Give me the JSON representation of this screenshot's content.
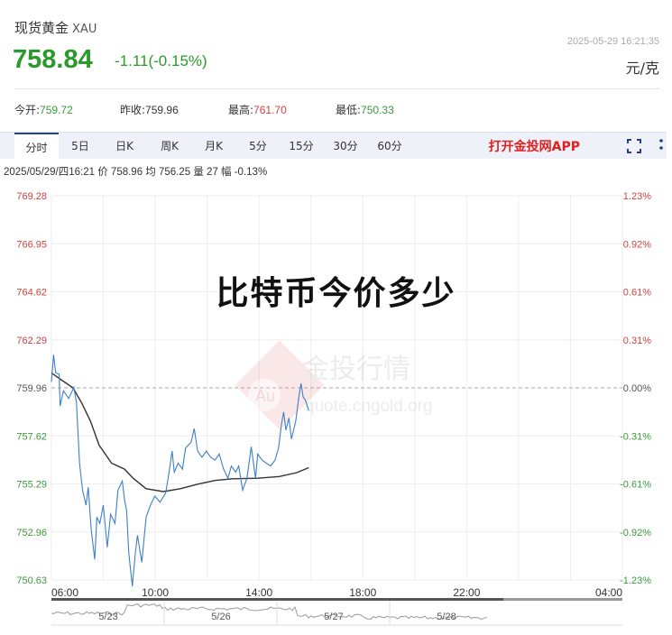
{
  "header": {
    "name": "现货黄金",
    "code": "XAU",
    "price": "758.84",
    "change": "-1.11(-0.15%)",
    "timestamp": "2025-05-29 16:21:35",
    "unit": "元/克"
  },
  "stats": [
    {
      "label": "今开:",
      "value": "759.72",
      "color": "#3a9a3a"
    },
    {
      "label": "昨收:",
      "value": "759.96",
      "color": "#333333"
    },
    {
      "label": "最高:",
      "value": "761.70",
      "color": "#d04040"
    },
    {
      "label": "最低:",
      "value": "750.33",
      "color": "#3a9a3a"
    }
  ],
  "tabs": [
    "分时",
    "5日",
    "日K",
    "周K",
    "月K",
    "5分",
    "15分",
    "30分",
    "60分"
  ],
  "active_tab": "分时",
  "app_link": "打开金投网APP",
  "icons": {
    "fullscreen": "fullscreen-icon",
    "more": "more-vertical-icon"
  },
  "info_line": "2025/05/29/四16:21  价 758.96  均 756.25  量 27  幅 -0.13%",
  "overlay_text": "比特币今价多少",
  "watermark": {
    "brand": "金投行情",
    "url": "quote.cngold.org",
    "logo": "Au"
  },
  "colors": {
    "up": "#d04040",
    "down": "#3a9a3a",
    "price_line": "#3d7fc8",
    "avg_line": "#333333"
  },
  "chart_data": {
    "type": "line",
    "y_ticks": [
      "769.28",
      "766.95",
      "764.62",
      "762.29",
      "759.96",
      "757.62",
      "755.29",
      "752.96",
      "750.63"
    ],
    "pct_ticks": [
      "1.23%",
      "0.92%",
      "0.61%",
      "0.31%",
      "0.00%",
      "-0.31%",
      "-0.61%",
      "-0.92%",
      "-1.23%"
    ],
    "ylim": [
      750.63,
      769.28
    ],
    "prev_close": 759.96,
    "x_ticks": [
      "06:00",
      "10:00",
      "14:00",
      "18:00",
      "22:00",
      "04:00"
    ],
    "x_range": [
      "06:00",
      "04:00"
    ],
    "grid": true,
    "price": [
      [
        "06:00",
        760.24
      ],
      [
        "06:05",
        761.56
      ],
      [
        "06:10",
        760.68
      ],
      [
        "06:18",
        760.61
      ],
      [
        "06:20",
        759.08
      ],
      [
        "06:28",
        759.81
      ],
      [
        "06:40",
        759.44
      ],
      [
        "06:52",
        759.98
      ],
      [
        "06:58",
        759.22
      ],
      [
        "07:05",
        756.3
      ],
      [
        "07:12",
        754.99
      ],
      [
        "07:20",
        754.26
      ],
      [
        "07:25",
        755.13
      ],
      [
        "07:32",
        753.09
      ],
      [
        "07:40",
        751.63
      ],
      [
        "07:45",
        753.68
      ],
      [
        "07:52",
        753.38
      ],
      [
        "08:00",
        754.26
      ],
      [
        "08:09",
        752.22
      ],
      [
        "08:17",
        753.82
      ],
      [
        "08:27",
        753.38
      ],
      [
        "08:34",
        754.99
      ],
      [
        "08:44",
        755.43
      ],
      [
        "08:49",
        754.55
      ],
      [
        "08:54",
        753.97
      ],
      [
        "08:59",
        751.92
      ],
      [
        "09:07",
        750.32
      ],
      [
        "09:14",
        751.92
      ],
      [
        "09:19",
        752.8
      ],
      [
        "09:29",
        751.49
      ],
      [
        "09:39",
        753.68
      ],
      [
        "09:49",
        754.26
      ],
      [
        "09:59",
        754.7
      ],
      [
        "10:11",
        754.41
      ],
      [
        "10:24",
        754.84
      ],
      [
        "10:31",
        755.72
      ],
      [
        "10:39",
        756.89
      ],
      [
        "10:44",
        755.86
      ],
      [
        "10:53",
        756.3
      ],
      [
        "11:03",
        756.01
      ],
      [
        "11:10",
        757.03
      ],
      [
        "11:23",
        757.32
      ],
      [
        "11:30",
        757.98
      ],
      [
        "11:38",
        756.89
      ],
      [
        "11:48",
        756.59
      ],
      [
        "11:58",
        756.89
      ],
      [
        "12:08",
        756.59
      ],
      [
        "12:18",
        756.45
      ],
      [
        "12:28",
        756.74
      ],
      [
        "12:38",
        756.01
      ],
      [
        "12:48",
        755.57
      ],
      [
        "12:56",
        756.16
      ],
      [
        "13:06",
        755.86
      ],
      [
        "13:13",
        756.16
      ],
      [
        "13:22",
        754.99
      ],
      [
        "13:32",
        755.57
      ],
      [
        "13:42",
        757.1
      ],
      [
        "13:52",
        755.57
      ],
      [
        "13:57",
        756.74
      ],
      [
        "14:07",
        756.45
      ],
      [
        "14:17",
        756.3
      ],
      [
        "14:27",
        756.16
      ],
      [
        "14:37",
        756.45
      ],
      [
        "14:45",
        757.03
      ],
      [
        "14:52",
        758.2
      ],
      [
        "14:57",
        758.78
      ],
      [
        "15:02",
        757.91
      ],
      [
        "15:09",
        758.49
      ],
      [
        "15:15",
        757.47
      ],
      [
        "15:25",
        758.35
      ],
      [
        "15:32",
        759.51
      ],
      [
        "15:37",
        760.17
      ],
      [
        "15:42",
        759.51
      ],
      [
        "15:47",
        759.37
      ],
      [
        "15:55",
        758.86
      ]
    ],
    "average": [
      [
        "06:00",
        760.68
      ],
      [
        "06:30",
        760.24
      ],
      [
        "06:50",
        759.95
      ],
      [
        "07:10",
        759.22
      ],
      [
        "07:30",
        758.35
      ],
      [
        "07:50",
        757.18
      ],
      [
        "08:19",
        756.3
      ],
      [
        "08:49",
        756.01
      ],
      [
        "09:09",
        755.57
      ],
      [
        "09:39",
        755.06
      ],
      [
        "10:19",
        754.92
      ],
      [
        "10:58",
        755.06
      ],
      [
        "11:38",
        755.28
      ],
      [
        "12:18",
        755.46
      ],
      [
        "12:58",
        755.54
      ],
      [
        "13:57",
        755.57
      ],
      [
        "14:47",
        755.65
      ],
      [
        "15:27",
        755.84
      ],
      [
        "15:55",
        756.08
      ]
    ],
    "navigator_labels": [
      "5/23",
      "5/26",
      "5/27",
      "5/28"
    ]
  }
}
